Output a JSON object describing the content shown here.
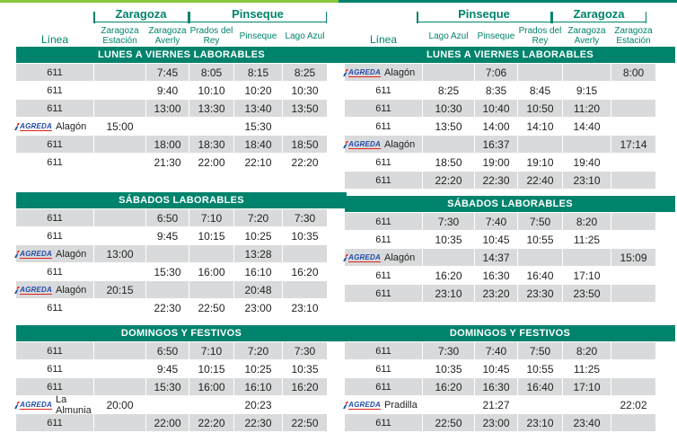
{
  "left": {
    "cities": [
      {
        "name": "Zaragoza",
        "left": 86,
        "width": 106
      },
      {
        "name": "Pinseque",
        "left": 192,
        "width": 154
      }
    ],
    "headers": [
      "Línea",
      "Zaragoza Estación",
      "Zaragoza Averly",
      "Prados del Rey",
      "Pinseque",
      "Lago Azul"
    ],
    "sections": [
      {
        "title": "LUNES A VIERNES LABORABLES",
        "rows": [
          {
            "line": "611",
            "times": [
              "",
              "7:45",
              "8:05",
              "8:15",
              "8:25"
            ]
          },
          {
            "line": "611",
            "times": [
              "",
              "9:40",
              "10:10",
              "10:20",
              "10:30"
            ]
          },
          {
            "line": "611",
            "times": [
              "",
              "13:00",
              "13:30",
              "13:40",
              "13:50"
            ]
          },
          {
            "line": "Alagón",
            "logo": "AGREDA",
            "times": [
              "15:00",
              "",
              "",
              "15:30",
              ""
            ]
          },
          {
            "line": "611",
            "times": [
              "",
              "18:00",
              "18:30",
              "18:40",
              "18:50"
            ]
          },
          {
            "line": "611",
            "times": [
              "",
              "21:30",
              "22:00",
              "22:10",
              "22:20"
            ]
          }
        ]
      },
      {
        "title": "SÁBADOS LABORABLES",
        "rows": [
          {
            "line": "611",
            "times": [
              "",
              "6:50",
              "7:10",
              "7:20",
              "7:30"
            ]
          },
          {
            "line": "611",
            "times": [
              "",
              "9:45",
              "10:15",
              "10:25",
              "10:35"
            ]
          },
          {
            "line": "Alagón",
            "logo": "AGREDA",
            "times": [
              "13:00",
              "",
              "",
              "13:28",
              ""
            ]
          },
          {
            "line": "611",
            "times": [
              "",
              "15:30",
              "16:00",
              "16:10",
              "16:20"
            ]
          },
          {
            "line": "Alagón",
            "logo": "AGREDA",
            "times": [
              "20:15",
              "",
              "",
              "20:48",
              ""
            ]
          },
          {
            "line": "611",
            "times": [
              "",
              "22:30",
              "22:50",
              "23:00",
              "23:10"
            ]
          }
        ]
      },
      {
        "title": "DOMINGOS Y FESTIVOS",
        "rows": [
          {
            "line": "611",
            "times": [
              "",
              "6:50",
              "7:10",
              "7:20",
              "7:30"
            ]
          },
          {
            "line": "611",
            "times": [
              "",
              "9:45",
              "10:15",
              "10:25",
              "10:35"
            ]
          },
          {
            "line": "611",
            "times": [
              "",
              "15:30",
              "16:00",
              "16:10",
              "16:20"
            ]
          },
          {
            "line": "La Almunia",
            "logo": "AGREDA",
            "times": [
              "20:00",
              "",
              "",
              "20:23",
              ""
            ]
          },
          {
            "line": "611",
            "times": [
              "",
              "22:00",
              "22:20",
              "22:30",
              "22:50"
            ]
          }
        ]
      }
    ]
  },
  "right": {
    "cities": [
      {
        "name": "Pinseque",
        "left": 80,
        "width": 150
      },
      {
        "name": "Zaragoza",
        "left": 230,
        "width": 106
      }
    ],
    "headers": [
      "Línea",
      "Lago Azul",
      "Pinseque",
      "Prados del Rey",
      "Zaragoza Averly",
      "Zaragoza Estación"
    ],
    "sections": [
      {
        "title": "LUNES A VIERNES LABORABLES",
        "rows": [
          {
            "line": "Alagón",
            "logo": "AGREDA",
            "times": [
              "",
              "7:06",
              "",
              "",
              "8:00"
            ]
          },
          {
            "line": "611",
            "times": [
              "8:25",
              "8:35",
              "8:45",
              "9:15",
              ""
            ]
          },
          {
            "line": "611",
            "times": [
              "10:30",
              "10:40",
              "10:50",
              "11:20",
              ""
            ]
          },
          {
            "line": "611",
            "times": [
              "13:50",
              "14:00",
              "14:10",
              "14:40",
              ""
            ]
          },
          {
            "line": "Alagón",
            "logo": "AGREDA",
            "times": [
              "",
              "16:37",
              "",
              "",
              "17:14"
            ]
          },
          {
            "line": "611",
            "times": [
              "18:50",
              "19:00",
              "19:10",
              "19:40",
              ""
            ]
          },
          {
            "line": "611",
            "times": [
              "22:20",
              "22:30",
              "22:40",
              "23:10",
              ""
            ]
          }
        ]
      },
      {
        "title": "SÁBADOS LABORABLES",
        "rows": [
          {
            "line": "611",
            "times": [
              "7:30",
              "7:40",
              "7:50",
              "8:20",
              ""
            ]
          },
          {
            "line": "611",
            "times": [
              "10:35",
              "10:45",
              "10:55",
              "11:25",
              ""
            ]
          },
          {
            "line": "Alagón",
            "logo": "AGREDA",
            "times": [
              "",
              "14:37",
              "",
              "",
              "15:09"
            ]
          },
          {
            "line": "611",
            "times": [
              "16:20",
              "16:30",
              "16:40",
              "17:10",
              ""
            ]
          },
          {
            "line": "611",
            "times": [
              "23:10",
              "23:20",
              "23:30",
              "23:50",
              ""
            ]
          }
        ]
      },
      {
        "title": "DOMINGOS Y FESTIVOS",
        "rows": [
          {
            "line": "611",
            "times": [
              "7:30",
              "7:40",
              "7:50",
              "8:20",
              ""
            ]
          },
          {
            "line": "611",
            "times": [
              "10:35",
              "10:45",
              "10:55",
              "11:25",
              ""
            ]
          },
          {
            "line": "611",
            "times": [
              "16:20",
              "16:30",
              "16:40",
              "17:10",
              ""
            ]
          },
          {
            "line": "Pradilla",
            "logo": "AGREDA",
            "times": [
              "",
              "21:27",
              "",
              "",
              "22:02"
            ]
          },
          {
            "line": "611",
            "times": [
              "22:50",
              "23:00",
              "23:10",
              "23:40",
              ""
            ]
          }
        ]
      }
    ]
  },
  "colors": {
    "accent": "#00836c",
    "shade": "#d9dadb",
    "topline_left": "#8cc63f"
  }
}
